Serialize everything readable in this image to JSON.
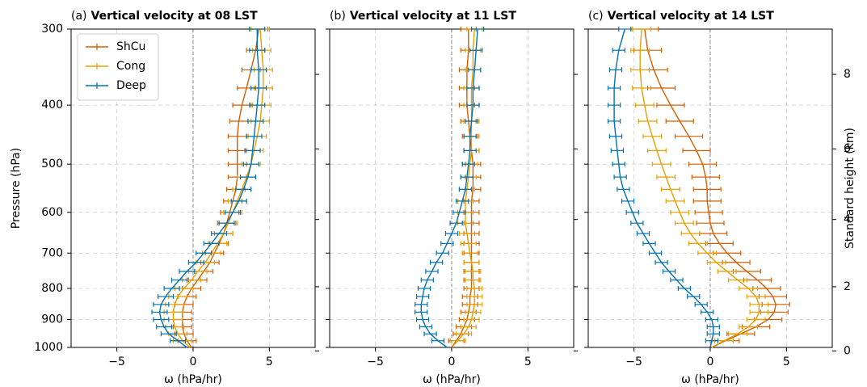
{
  "chart_data": {
    "type": "line",
    "y_label": "Pressure (hPa)",
    "y2_label": "Standard height (km)",
    "y_ticks": [
      300,
      400,
      500,
      600,
      700,
      800,
      900,
      1000
    ],
    "y2_ticks": [
      0,
      2,
      4,
      6,
      8
    ],
    "ylim": [
      1000,
      300
    ],
    "y_scale": "log",
    "x_label": "ω (hPa/hr)",
    "x_ticks": [
      -5,
      0,
      5
    ],
    "xlim": [
      -8,
      8
    ],
    "grid": true,
    "legend_position": "top-left",
    "series_names": [
      "ShCu",
      "Cong",
      "Deep"
    ],
    "series_colors": {
      "ShCu": "#d55e00",
      "Cong": "#e69f00",
      "Deep": "#0072b2"
    },
    "pressure_levels": [
      1000,
      975,
      950,
      925,
      900,
      875,
      850,
      825,
      800,
      775,
      750,
      725,
      700,
      675,
      650,
      625,
      600,
      575,
      550,
      525,
      500,
      475,
      450,
      425,
      400,
      375,
      350,
      325,
      300
    ],
    "panels": [
      {
        "label": "(a)",
        "title": "Vertical velocity at 08 LST",
        "series": [
          {
            "name": "ShCu",
            "errors": 0.6,
            "values": [
              -0.1,
              -0.4,
              -0.6,
              -0.7,
              -0.7,
              -0.7,
              -0.6,
              -0.4,
              -0.1,
              0.3,
              0.7,
              1.1,
              1.4,
              1.7,
              2.0,
              2.2,
              2.4,
              2.6,
              2.8,
              2.9,
              2.9,
              2.9,
              2.9,
              3.0,
              3.2,
              3.5,
              3.8,
              4.1,
              4.3
            ]
          },
          {
            "name": "Cong",
            "errors": 0.6,
            "values": [
              -0.2,
              -0.7,
              -1.0,
              -1.2,
              -1.3,
              -1.3,
              -1.2,
              -1.0,
              -0.6,
              -0.1,
              0.3,
              0.8,
              1.2,
              1.6,
              2.0,
              2.3,
              2.6,
              2.9,
              3.2,
              3.5,
              3.8,
              4.0,
              4.2,
              4.4,
              4.5,
              4.6,
              4.6,
              4.5,
              4.4
            ]
          },
          {
            "name": "Deep",
            "errors": 0.5,
            "values": [
              -0.4,
              -1.0,
              -1.6,
              -1.9,
              -2.1,
              -2.2,
              -2.1,
              -1.8,
              -1.4,
              -0.9,
              -0.4,
              0.2,
              0.7,
              1.2,
              1.7,
              2.2,
              2.6,
              3.0,
              3.3,
              3.6,
              3.8,
              3.9,
              4.0,
              4.1,
              4.2,
              4.3,
              4.3,
              4.2,
              4.2
            ]
          }
        ]
      },
      {
        "label": "(b)",
        "title": "Vertical velocity at 11 LST",
        "series": [
          {
            "name": "ShCu",
            "errors": 0.5,
            "values": [
              0.0,
              0.3,
              0.6,
              0.8,
              1.0,
              1.1,
              1.2,
              1.2,
              1.3,
              1.3,
              1.3,
              1.3,
              1.3,
              1.3,
              1.3,
              1.3,
              1.3,
              1.3,
              1.4,
              1.4,
              1.4,
              1.3,
              1.2,
              1.1,
              1.0,
              1.0,
              1.0,
              1.1,
              1.1
            ]
          },
          {
            "name": "Cong",
            "errors": 0.5,
            "values": [
              0.0,
              0.4,
              0.8,
              1.1,
              1.3,
              1.4,
              1.5,
              1.5,
              1.5,
              1.4,
              1.4,
              1.3,
              1.2,
              1.1,
              1.0,
              0.9,
              0.9,
              0.9,
              1.0,
              1.1,
              1.2,
              1.3,
              1.3,
              1.3,
              1.3,
              1.3,
              1.4,
              1.4,
              1.5
            ]
          },
          {
            "name": "Deep",
            "errors": 0.4,
            "values": [
              -0.3,
              -0.9,
              -1.4,
              -1.7,
              -1.9,
              -2.0,
              -2.0,
              -1.9,
              -1.8,
              -1.6,
              -1.3,
              -1.0,
              -0.6,
              -0.3,
              0.0,
              0.3,
              0.5,
              0.7,
              0.9,
              1.0,
              1.1,
              1.2,
              1.2,
              1.3,
              1.4,
              1.4,
              1.5,
              1.6,
              1.7
            ]
          }
        ]
      },
      {
        "label": "(c)",
        "title": "Vertical velocity at 14 LST",
        "series": [
          {
            "name": "ShCu",
            "errors": 0.9,
            "values": [
              0.1,
              1.0,
              2.0,
              3.0,
              3.8,
              4.2,
              4.3,
              4.1,
              3.7,
              3.1,
              2.4,
              1.7,
              1.1,
              0.6,
              0.2,
              0.0,
              -0.1,
              -0.2,
              -0.2,
              -0.3,
              -0.5,
              -0.9,
              -1.4,
              -2.0,
              -2.6,
              -3.2,
              -3.7,
              -4.1,
              -4.3
            ]
          },
          {
            "name": "Cong",
            "errors": 0.6,
            "values": [
              0.1,
              0.9,
              1.8,
              2.5,
              3.0,
              3.2,
              3.2,
              3.0,
              2.5,
              1.8,
              1.1,
              0.4,
              -0.2,
              -0.8,
              -1.3,
              -1.7,
              -2.0,
              -2.3,
              -2.6,
              -2.9,
              -3.2,
              -3.5,
              -3.8,
              -4.1,
              -4.3,
              -4.5,
              -4.6,
              -4.6,
              -4.5
            ]
          },
          {
            "name": "Deep",
            "errors": 0.4,
            "values": [
              0.0,
              0.1,
              0.2,
              0.2,
              0.1,
              -0.2,
              -0.6,
              -1.1,
              -1.7,
              -2.2,
              -2.7,
              -3.2,
              -3.6,
              -4.0,
              -4.4,
              -4.8,
              -5.1,
              -5.4,
              -5.7,
              -5.9,
              -6.0,
              -6.1,
              -6.2,
              -6.3,
              -6.3,
              -6.3,
              -6.2,
              -6.0,
              -5.6
            ]
          }
        ]
      }
    ]
  }
}
